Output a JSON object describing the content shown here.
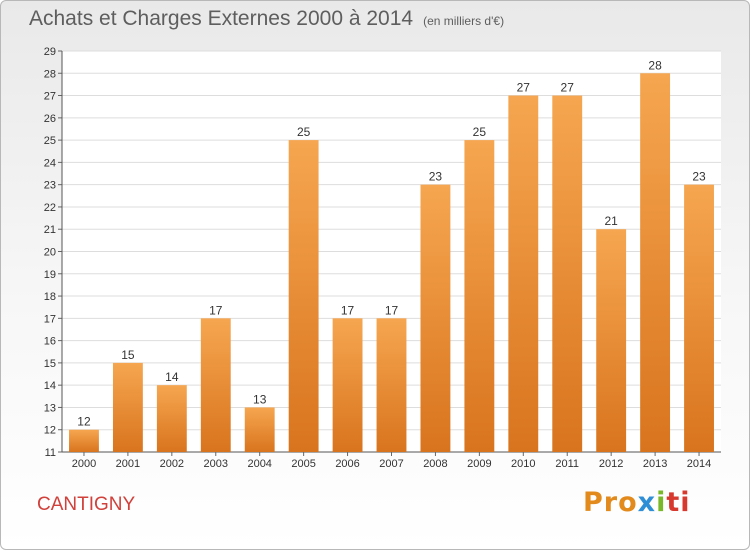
{
  "header": {
    "title": "Achats et Charges Externes 2000 à 2014",
    "subtitle": "(en milliers d'€)"
  },
  "footer": {
    "commune": "CANTIGNY",
    "logo_parts": [
      "Pro",
      "x",
      "i",
      "ti"
    ]
  },
  "colors": {
    "bar_light": "#f6a650",
    "bar_dark": "#d9741e",
    "commune": "#d1403a"
  },
  "chart_data": {
    "type": "bar",
    "title": "Achats et Charges Externes 2000 à 2014",
    "subtitle": "(en milliers d'€)",
    "xlabel": "",
    "ylabel": "",
    "categories": [
      "2000",
      "2001",
      "2002",
      "2003",
      "2004",
      "2005",
      "2006",
      "2007",
      "2008",
      "2009",
      "2010",
      "2011",
      "2012",
      "2013",
      "2014"
    ],
    "values": [
      12,
      15,
      14,
      17,
      13,
      25,
      17,
      17,
      23,
      25,
      27,
      27,
      21,
      28,
      23
    ],
    "ylim": [
      11,
      29
    ],
    "yticks": [
      11,
      12,
      13,
      14,
      15,
      16,
      17,
      18,
      19,
      20,
      21,
      22,
      23,
      24,
      25,
      26,
      27,
      28,
      29
    ],
    "grid": true,
    "legend": "none"
  }
}
